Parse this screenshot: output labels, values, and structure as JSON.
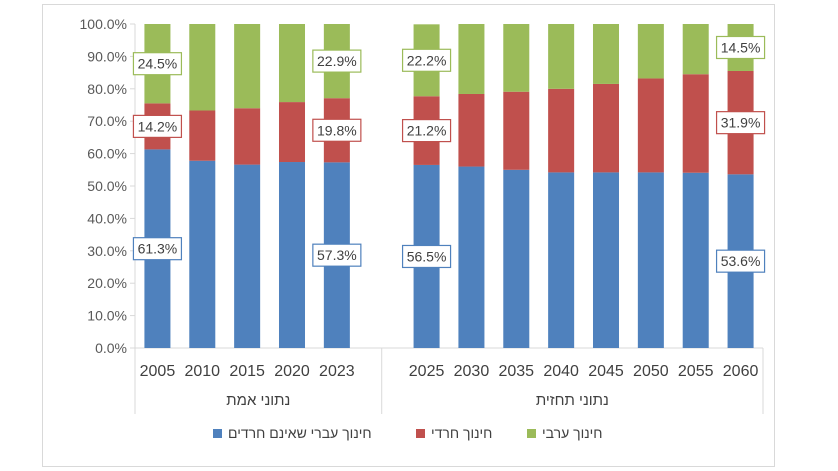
{
  "chart_data": {
    "type": "bar",
    "stacked": true,
    "percent": true,
    "categories": [
      "2005",
      "2010",
      "2015",
      "2020",
      "2023",
      "2025",
      "2030",
      "2035",
      "2040",
      "2045",
      "2050",
      "2055",
      "2060"
    ],
    "groups": [
      {
        "label": "נתוני אמת",
        "categories": [
          "2005",
          "2010",
          "2015",
          "2020",
          "2023"
        ]
      },
      {
        "label": "נתוני תחזית",
        "categories": [
          "2025",
          "2030",
          "2035",
          "2040",
          "2045",
          "2050",
          "2055",
          "2060"
        ]
      }
    ],
    "series": [
      {
        "name": "חינוך עברי שאינם חרדים",
        "color": "#4f81bd",
        "values": [
          61.3,
          57.8,
          56.6,
          57.4,
          57.3,
          56.5,
          56.0,
          55.0,
          54.2,
          54.2,
          54.2,
          54.1,
          53.6
        ]
      },
      {
        "name": "חינוך חרדי",
        "color": "#c0504d",
        "values": [
          14.2,
          15.5,
          17.4,
          18.5,
          19.8,
          21.2,
          22.4,
          24.1,
          25.8,
          27.3,
          29.0,
          30.4,
          31.9
        ]
      },
      {
        "name": "חינוך ערבי",
        "color": "#9bbb59",
        "values": [
          24.5,
          26.7,
          26.0,
          24.1,
          22.9,
          22.2,
          21.6,
          20.9,
          20.0,
          18.5,
          16.8,
          15.5,
          14.5
        ]
      }
    ],
    "data_labels": [
      {
        "series": 0,
        "index": 0,
        "text": "61.3%"
      },
      {
        "series": 1,
        "index": 0,
        "text": "14.2%"
      },
      {
        "series": 2,
        "index": 0,
        "text": "24.5%"
      },
      {
        "series": 0,
        "index": 4,
        "text": "57.3%"
      },
      {
        "series": 1,
        "index": 4,
        "text": "19.8%"
      },
      {
        "series": 2,
        "index": 4,
        "text": "22.9%"
      },
      {
        "series": 0,
        "index": 5,
        "text": "56.5%"
      },
      {
        "series": 1,
        "index": 5,
        "text": "21.2%"
      },
      {
        "series": 2,
        "index": 5,
        "text": "22.2%"
      },
      {
        "series": 0,
        "index": 12,
        "text": "53.6%"
      },
      {
        "series": 1,
        "index": 12,
        "text": "31.9%"
      },
      {
        "series": 2,
        "index": 12,
        "text": "14.5%"
      }
    ],
    "y_ticks": [
      "0.0%",
      "10.0%",
      "20.0%",
      "30.0%",
      "40.0%",
      "50.0%",
      "60.0%",
      "70.0%",
      "80.0%",
      "90.0%",
      "100.0%"
    ],
    "ylim": [
      0,
      100
    ],
    "legend_position": "bottom",
    "legend_order": [
      2,
      1,
      0
    ],
    "grid": false
  }
}
